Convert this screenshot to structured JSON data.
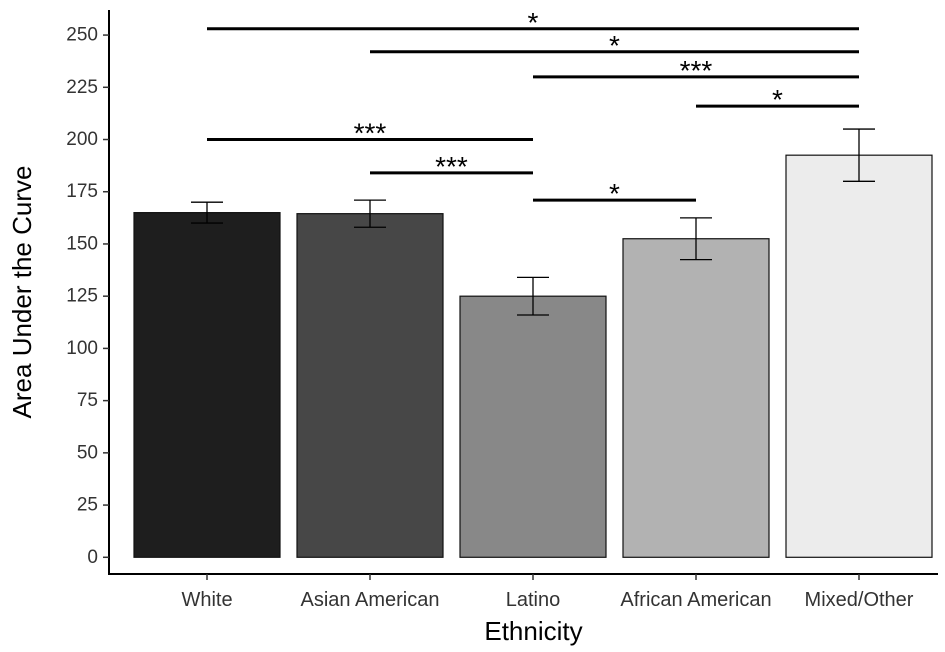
{
  "chart_data": {
    "type": "bar",
    "title": "",
    "xlabel": "Ethnicity",
    "ylabel": "Area Under the Curve",
    "ylim": [
      -8,
      262
    ],
    "yticks": [
      0,
      25,
      50,
      75,
      100,
      125,
      150,
      175,
      200,
      225,
      250
    ],
    "grid": false,
    "legend": "none",
    "categories": [
      "White",
      "Asian American",
      "Latino",
      "African American",
      "Mixed/Other"
    ],
    "values": [
      165,
      164.5,
      125,
      152.5,
      192.5
    ],
    "error_low": [
      160,
      158,
      116,
      142.5,
      180
    ],
    "error_high": [
      170,
      171,
      134,
      162.5,
      205
    ],
    "colors": [
      "#1e1e1e",
      "#474747",
      "#888888",
      "#b2b2b2",
      "#ececec"
    ],
    "significance": [
      {
        "from": "White",
        "to": "Mixed/Other",
        "y": 253,
        "label": "*"
      },
      {
        "from": "Asian American",
        "to": "Mixed/Other",
        "y": 242,
        "label": "*"
      },
      {
        "from": "Latino",
        "to": "Mixed/Other",
        "y": 230,
        "label": "***"
      },
      {
        "from": "African American",
        "to": "Mixed/Other",
        "y": 216,
        "label": "*"
      },
      {
        "from": "White",
        "to": "Latino",
        "y": 200,
        "label": "***"
      },
      {
        "from": "Asian American",
        "to": "Latino",
        "y": 184,
        "label": "***"
      },
      {
        "from": "Latino",
        "to": "African American",
        "y": 171,
        "label": "*"
      }
    ]
  }
}
